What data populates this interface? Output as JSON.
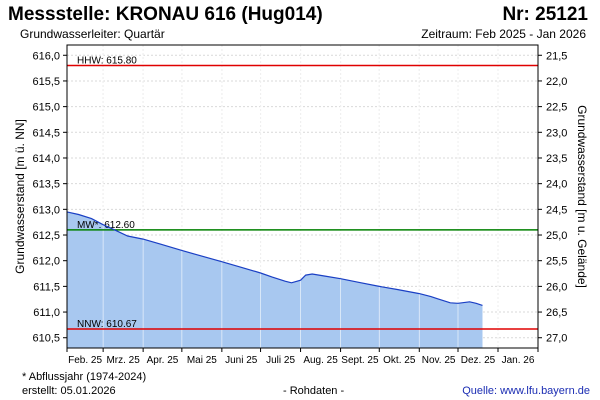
{
  "header": {
    "title": "Messstelle: KRONAU 616 (Hug014)",
    "number": "Nr: 25121",
    "subtitle": "Grundwasserleiter: Quartär",
    "period": "Zeitraum: Feb 2025 - Jan 2026"
  },
  "footer": {
    "note": "* Abflussjahr (1974-2024)",
    "created": "erstellt:  05.01.2026",
    "rawdata": "- Rohdaten -",
    "source": "Quelle: www.lfu.bayern.de"
  },
  "colors": {
    "fill": "#a8c8f0",
    "line": "#1a3fc4",
    "hhw": "#e00000",
    "mw": "#008000",
    "nnw": "#e00000",
    "grid": "#d9d9d9"
  },
  "chart_data": {
    "type": "area",
    "ylabel": "Grundwasserstand [m ü. NN]",
    "y2label": "Grundwasserstand [m u. Gelände]",
    "ylim": [
      610.3,
      616.2
    ],
    "y_ticks": [
      "610,5",
      "611,0",
      "611,5",
      "612,0",
      "612,5",
      "613,0",
      "613,5",
      "614,0",
      "614,5",
      "615,0",
      "615,5",
      "616,0"
    ],
    "y2_ticks": [
      "27,0",
      "26,5",
      "26,0",
      "25,5",
      "25,0",
      "24,5",
      "24,0",
      "23,5",
      "23,0",
      "22,5",
      "22,0",
      "21,5"
    ],
    "x_ticks": [
      "Feb. 25",
      "Mrz. 25",
      "Apr. 25",
      "Mai 25",
      "Juni 25",
      "Juli 25",
      "Aug. 25",
      "Sept. 25",
      "Okt. 25",
      "Nov. 25",
      "Dez. 25",
      "Jan. 26"
    ],
    "x": [
      "2025-02-01",
      "2025-02-10",
      "2025-02-20",
      "2025-03-01",
      "2025-03-10",
      "2025-03-20",
      "2025-04-01",
      "2025-04-15",
      "2025-05-01",
      "2025-05-15",
      "2025-06-01",
      "2025-06-15",
      "2025-07-01",
      "2025-07-10",
      "2025-07-20",
      "2025-07-25",
      "2025-08-01",
      "2025-08-05",
      "2025-08-10",
      "2025-08-20",
      "2025-09-01",
      "2025-09-15",
      "2025-10-01",
      "2025-10-15",
      "2025-11-01",
      "2025-11-10",
      "2025-11-15",
      "2025-11-25",
      "2025-12-01",
      "2025-12-10",
      "2025-12-15",
      "2025-12-20"
    ],
    "y": [
      612.95,
      612.9,
      612.82,
      612.7,
      612.6,
      612.48,
      612.42,
      612.32,
      612.2,
      612.1,
      611.98,
      611.88,
      611.76,
      611.68,
      611.6,
      611.57,
      611.62,
      611.72,
      611.74,
      611.7,
      611.65,
      611.58,
      611.5,
      611.44,
      611.36,
      611.3,
      611.26,
      611.18,
      611.17,
      611.2,
      611.17,
      611.13
    ],
    "reference_lines": [
      {
        "label": "HHW: 615.80",
        "value": 615.8,
        "color": "#e00000"
      },
      {
        "label": "MW*: 612.60",
        "value": 612.6,
        "color": "#008000"
      },
      {
        "label": "NNW: 610.67",
        "value": 610.67,
        "color": "#e00000"
      }
    ],
    "grid": true,
    "legend": "none"
  }
}
